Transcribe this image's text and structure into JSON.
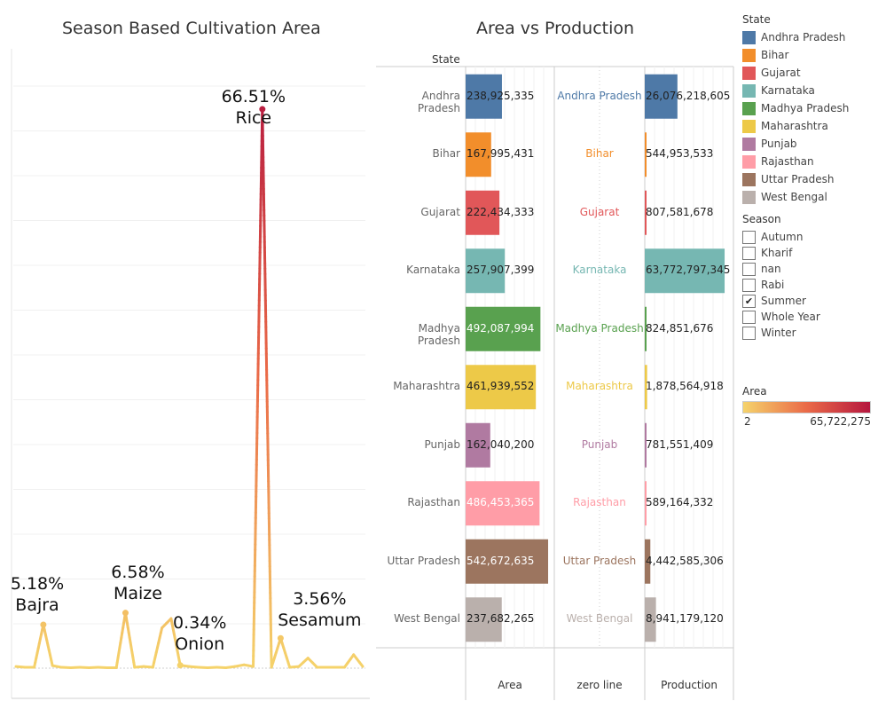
{
  "chart_data": [
    {
      "type": "line",
      "title": "Season Based Cultivation Area",
      "points": [
        0.2,
        0.1,
        0.1,
        5.18,
        0.3,
        0.1,
        0.05,
        0.1,
        0.05,
        0.1,
        0.05,
        0.05,
        6.58,
        0.1,
        0.2,
        0.1,
        4.8,
        5.9,
        0.34,
        0.2,
        0.1,
        0.05,
        0.1,
        0.05,
        0.2,
        0.4,
        0.2,
        66.51,
        0.1,
        3.56,
        0.1,
        0.2,
        1.2,
        0.1,
        0.1,
        0.1,
        0.1,
        1.6,
        0.2
      ],
      "annotations": [
        {
          "index": 3,
          "pct": "5.18%",
          "label": "Bajra"
        },
        {
          "index": 12,
          "pct": "6.58%",
          "label": "Maize"
        },
        {
          "index": 18,
          "pct": "0.34%",
          "label": "Onion"
        },
        {
          "index": 27,
          "pct": "66.51%",
          "label": "Rice"
        },
        {
          "index": 29,
          "pct": "3.56%",
          "label": "Sesamum"
        }
      ],
      "ylim": [
        0,
        70
      ]
    },
    {
      "type": "bar",
      "title": "Area vs Production",
      "row_header": "State",
      "columns": [
        "Area",
        "zero line",
        "Production"
      ],
      "categories": [
        "Andhra Pradesh",
        "Bihar",
        "Gujarat",
        "Karnataka",
        "Madhya Pradesh",
        "Maharashtra",
        "Punjab",
        "Rajasthan",
        "Uttar Pradesh",
        "West Bengal"
      ],
      "series": [
        {
          "name": "Area",
          "values": [
            238925335,
            167995431,
            222434333,
            257907399,
            492087994,
            461939552,
            162040200,
            486453365,
            542672635,
            237682265
          ],
          "labels": [
            "238,925,335",
            "167,995,431",
            "222,434,333",
            "257,907,399",
            "492,087,994",
            "461,939,552",
            "162,040,200",
            "486,453,365",
            "542,672,635",
            "237,682,265"
          ]
        },
        {
          "name": "Production",
          "values": [
            26076218605,
            544953533,
            807581678,
            63772797345,
            824851676,
            1878564918,
            781551409,
            589164332,
            4442585306,
            8941179120
          ],
          "labels": [
            "26,076,218,605",
            "544,953,533",
            "807,581,678",
            "63,772,797,345",
            "824,851,676",
            "1,878,564,918",
            "781,551,409",
            "589,164,332",
            "4,442,585,306",
            "8,941,179,120"
          ]
        }
      ],
      "colors": [
        "#4e79a7",
        "#f28e2b",
        "#e15759",
        "#76b7b2",
        "#59a14f",
        "#edc948",
        "#b07aa1",
        "#ff9da7",
        "#9c755f",
        "#bab0ac"
      ],
      "area_max": 560000000,
      "production_max": 68000000000
    }
  ],
  "legend": {
    "state_title": "State",
    "states": [
      "Andhra Pradesh",
      "Bihar",
      "Gujarat",
      "Karnataka",
      "Madhya Pradesh",
      "Maharashtra",
      "Punjab",
      "Rajasthan",
      "Uttar Pradesh",
      "West Bengal"
    ],
    "season_title": "Season",
    "seasons": [
      {
        "label": "Autumn",
        "checked": false
      },
      {
        "label": "Kharif",
        "checked": false
      },
      {
        "label": "nan",
        "checked": false
      },
      {
        "label": "Rabi",
        "checked": false
      },
      {
        "label": "Summer",
        "checked": true
      },
      {
        "label": "Whole Year",
        "checked": false
      },
      {
        "label": "Winter",
        "checked": false
      }
    ],
    "check_mark": "✔",
    "area_title": "Area",
    "area_min": "2",
    "area_max": "65,722,275",
    "gradient_start": "#f5d36b",
    "gradient_mid": "#ea6a48",
    "gradient_end": "#b5173f"
  }
}
